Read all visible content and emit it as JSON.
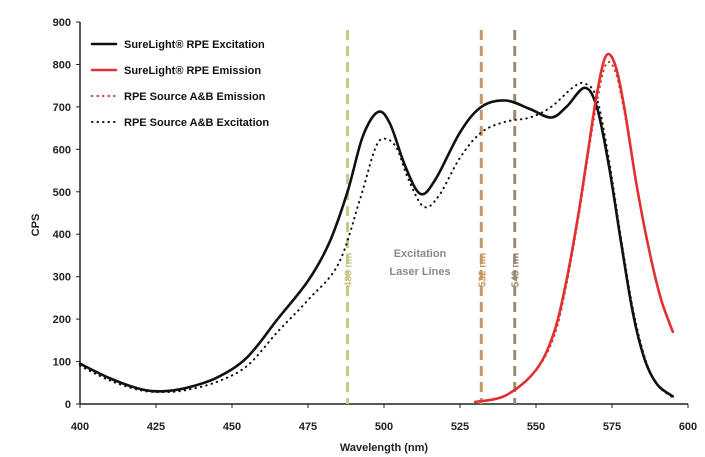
{
  "chart_data": {
    "type": "line",
    "xlabel": "Wavelength (nm)",
    "ylabel": "CPS",
    "xlim": [
      400,
      600
    ],
    "ylim": [
      0,
      900
    ],
    "xticks": [
      400,
      425,
      450,
      475,
      500,
      525,
      550,
      575,
      600
    ],
    "yticks": [
      0,
      100,
      200,
      300,
      400,
      500,
      600,
      700,
      800,
      900
    ],
    "grid": false,
    "legend_position": "top-left",
    "series": [
      {
        "name": "SureLight® RPE Excitation",
        "style": "solid",
        "color": "#111111",
        "points": [
          [
            400,
            95
          ],
          [
            410,
            60
          ],
          [
            420,
            35
          ],
          [
            427,
            30
          ],
          [
            435,
            38
          ],
          [
            445,
            62
          ],
          [
            455,
            110
          ],
          [
            465,
            200
          ],
          [
            475,
            290
          ],
          [
            482,
            380
          ],
          [
            488,
            500
          ],
          [
            493,
            630
          ],
          [
            498,
            688
          ],
          [
            502,
            660
          ],
          [
            507,
            560
          ],
          [
            512,
            495
          ],
          [
            517,
            530
          ],
          [
            525,
            640
          ],
          [
            532,
            700
          ],
          [
            540,
            715
          ],
          [
            548,
            695
          ],
          [
            555,
            675
          ],
          [
            560,
            700
          ],
          [
            566,
            745
          ],
          [
            570,
            700
          ],
          [
            574,
            560
          ],
          [
            578,
            380
          ],
          [
            582,
            210
          ],
          [
            586,
            100
          ],
          [
            590,
            45
          ],
          [
            595,
            18
          ]
        ]
      },
      {
        "name": "SureLight® RPE Emission",
        "style": "solid",
        "color": "#e03030",
        "points": [
          [
            530,
            5
          ],
          [
            540,
            20
          ],
          [
            550,
            80
          ],
          [
            556,
            170
          ],
          [
            560,
            290
          ],
          [
            564,
            450
          ],
          [
            567,
            590
          ],
          [
            570,
            730
          ],
          [
            573,
            820
          ],
          [
            576,
            800
          ],
          [
            579,
            700
          ],
          [
            583,
            520
          ],
          [
            587,
            370
          ],
          [
            591,
            250
          ],
          [
            595,
            170
          ]
        ]
      },
      {
        "name": "RPE Source A&B Emission",
        "style": "dotted",
        "color": "#e03030",
        "points": [
          [
            530,
            5
          ],
          [
            540,
            20
          ],
          [
            550,
            80
          ],
          [
            556,
            160
          ],
          [
            560,
            280
          ],
          [
            564,
            440
          ],
          [
            567,
            580
          ],
          [
            570,
            710
          ],
          [
            573,
            800
          ],
          [
            576,
            785
          ],
          [
            579,
            690
          ],
          [
            583,
            520
          ],
          [
            587,
            370
          ],
          [
            591,
            250
          ],
          [
            595,
            170
          ]
        ]
      },
      {
        "name": "RPE Source A&B Excitation",
        "style": "dotted",
        "color": "#111111",
        "points": [
          [
            400,
            90
          ],
          [
            410,
            55
          ],
          [
            420,
            32
          ],
          [
            428,
            28
          ],
          [
            435,
            33
          ],
          [
            445,
            52
          ],
          [
            455,
            90
          ],
          [
            465,
            170
          ],
          [
            475,
            245
          ],
          [
            485,
            330
          ],
          [
            492,
            480
          ],
          [
            497,
            600
          ],
          [
            500,
            625
          ],
          [
            504,
            605
          ],
          [
            508,
            530
          ],
          [
            513,
            465
          ],
          [
            518,
            490
          ],
          [
            525,
            580
          ],
          [
            532,
            640
          ],
          [
            540,
            665
          ],
          [
            548,
            675
          ],
          [
            555,
            700
          ],
          [
            562,
            745
          ],
          [
            566,
            755
          ],
          [
            570,
            720
          ],
          [
            574,
            575
          ],
          [
            578,
            390
          ],
          [
            582,
            220
          ],
          [
            586,
            105
          ],
          [
            590,
            45
          ],
          [
            595,
            15
          ]
        ]
      }
    ],
    "laser_lines": [
      {
        "label": "488 nm",
        "x": 488,
        "color": "#c8c888"
      },
      {
        "label": "532 nm",
        "x": 532,
        "color": "#c89860"
      },
      {
        "label": "543 nm",
        "x": 543,
        "color": "#9a8a76"
      }
    ],
    "annotation": [
      "Excitation",
      "Laser Lines"
    ]
  }
}
